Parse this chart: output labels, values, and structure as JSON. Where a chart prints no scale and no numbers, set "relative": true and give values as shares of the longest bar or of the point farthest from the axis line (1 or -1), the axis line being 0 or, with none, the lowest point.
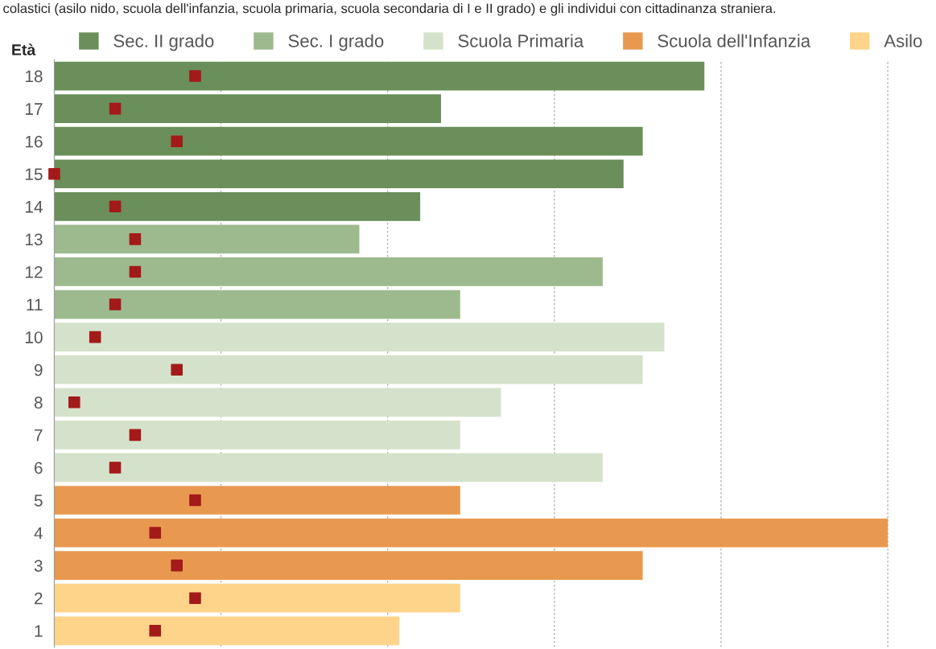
{
  "chart_data": {
    "type": "bar",
    "orientation": "horizontal",
    "relative": true,
    "title": "colastici (asilo nido, scuola dell'infanzia, scuola primaria, scuola secondaria di I e II grado) e gli individui con cittadinanza straniera.",
    "ylabel": "Età",
    "categories": [
      "18",
      "17",
      "16",
      "15",
      "14",
      "13",
      "12",
      "11",
      "10",
      "9",
      "8",
      "7",
      "6",
      "5",
      "4",
      "3",
      "2",
      "1"
    ],
    "series": [
      {
        "name": "Sec. II grado",
        "color": "#6a8f5a",
        "values": [
          0.78,
          0.464,
          0.706,
          0.683,
          0.439,
          null,
          null,
          null,
          null,
          null,
          null,
          null,
          null,
          null,
          null,
          null,
          null,
          null
        ]
      },
      {
        "name": "Sec. I grado",
        "color": "#9dba8e",
        "values": [
          null,
          null,
          null,
          null,
          null,
          0.366,
          0.658,
          0.487,
          null,
          null,
          null,
          null,
          null,
          null,
          null,
          null,
          null,
          null
        ]
      },
      {
        "name": "Scuola Primaria",
        "color": "#d5e2cb",
        "values": [
          null,
          null,
          null,
          null,
          null,
          null,
          null,
          null,
          0.732,
          0.706,
          0.536,
          0.487,
          0.658,
          null,
          null,
          null,
          null,
          null
        ]
      },
      {
        "name": "Scuola dell'Infanzia",
        "color": "#e8994f",
        "values": [
          null,
          null,
          null,
          null,
          null,
          null,
          null,
          null,
          null,
          null,
          null,
          null,
          null,
          0.487,
          1.0,
          0.706,
          null,
          null
        ]
      },
      {
        "name": "Asilo",
        "color": "#fdd48a",
        "values": [
          null,
          null,
          null,
          null,
          null,
          null,
          null,
          null,
          null,
          null,
          null,
          null,
          null,
          null,
          null,
          null,
          0.487,
          0.414
        ]
      },
      {
        "type": "scatter",
        "color": "#a31a1a",
        "marker": "square",
        "values": [
          0.169,
          0.073,
          0.147,
          0,
          0.073,
          0.097,
          0.097,
          0.073,
          0.049,
          0.147,
          0.024,
          0.097,
          0.073,
          0.169,
          0.121,
          0.147,
          0.169,
          0.121
        ]
      }
    ],
    "grid": "x",
    "legend": "top",
    "tick_labels": "y"
  }
}
